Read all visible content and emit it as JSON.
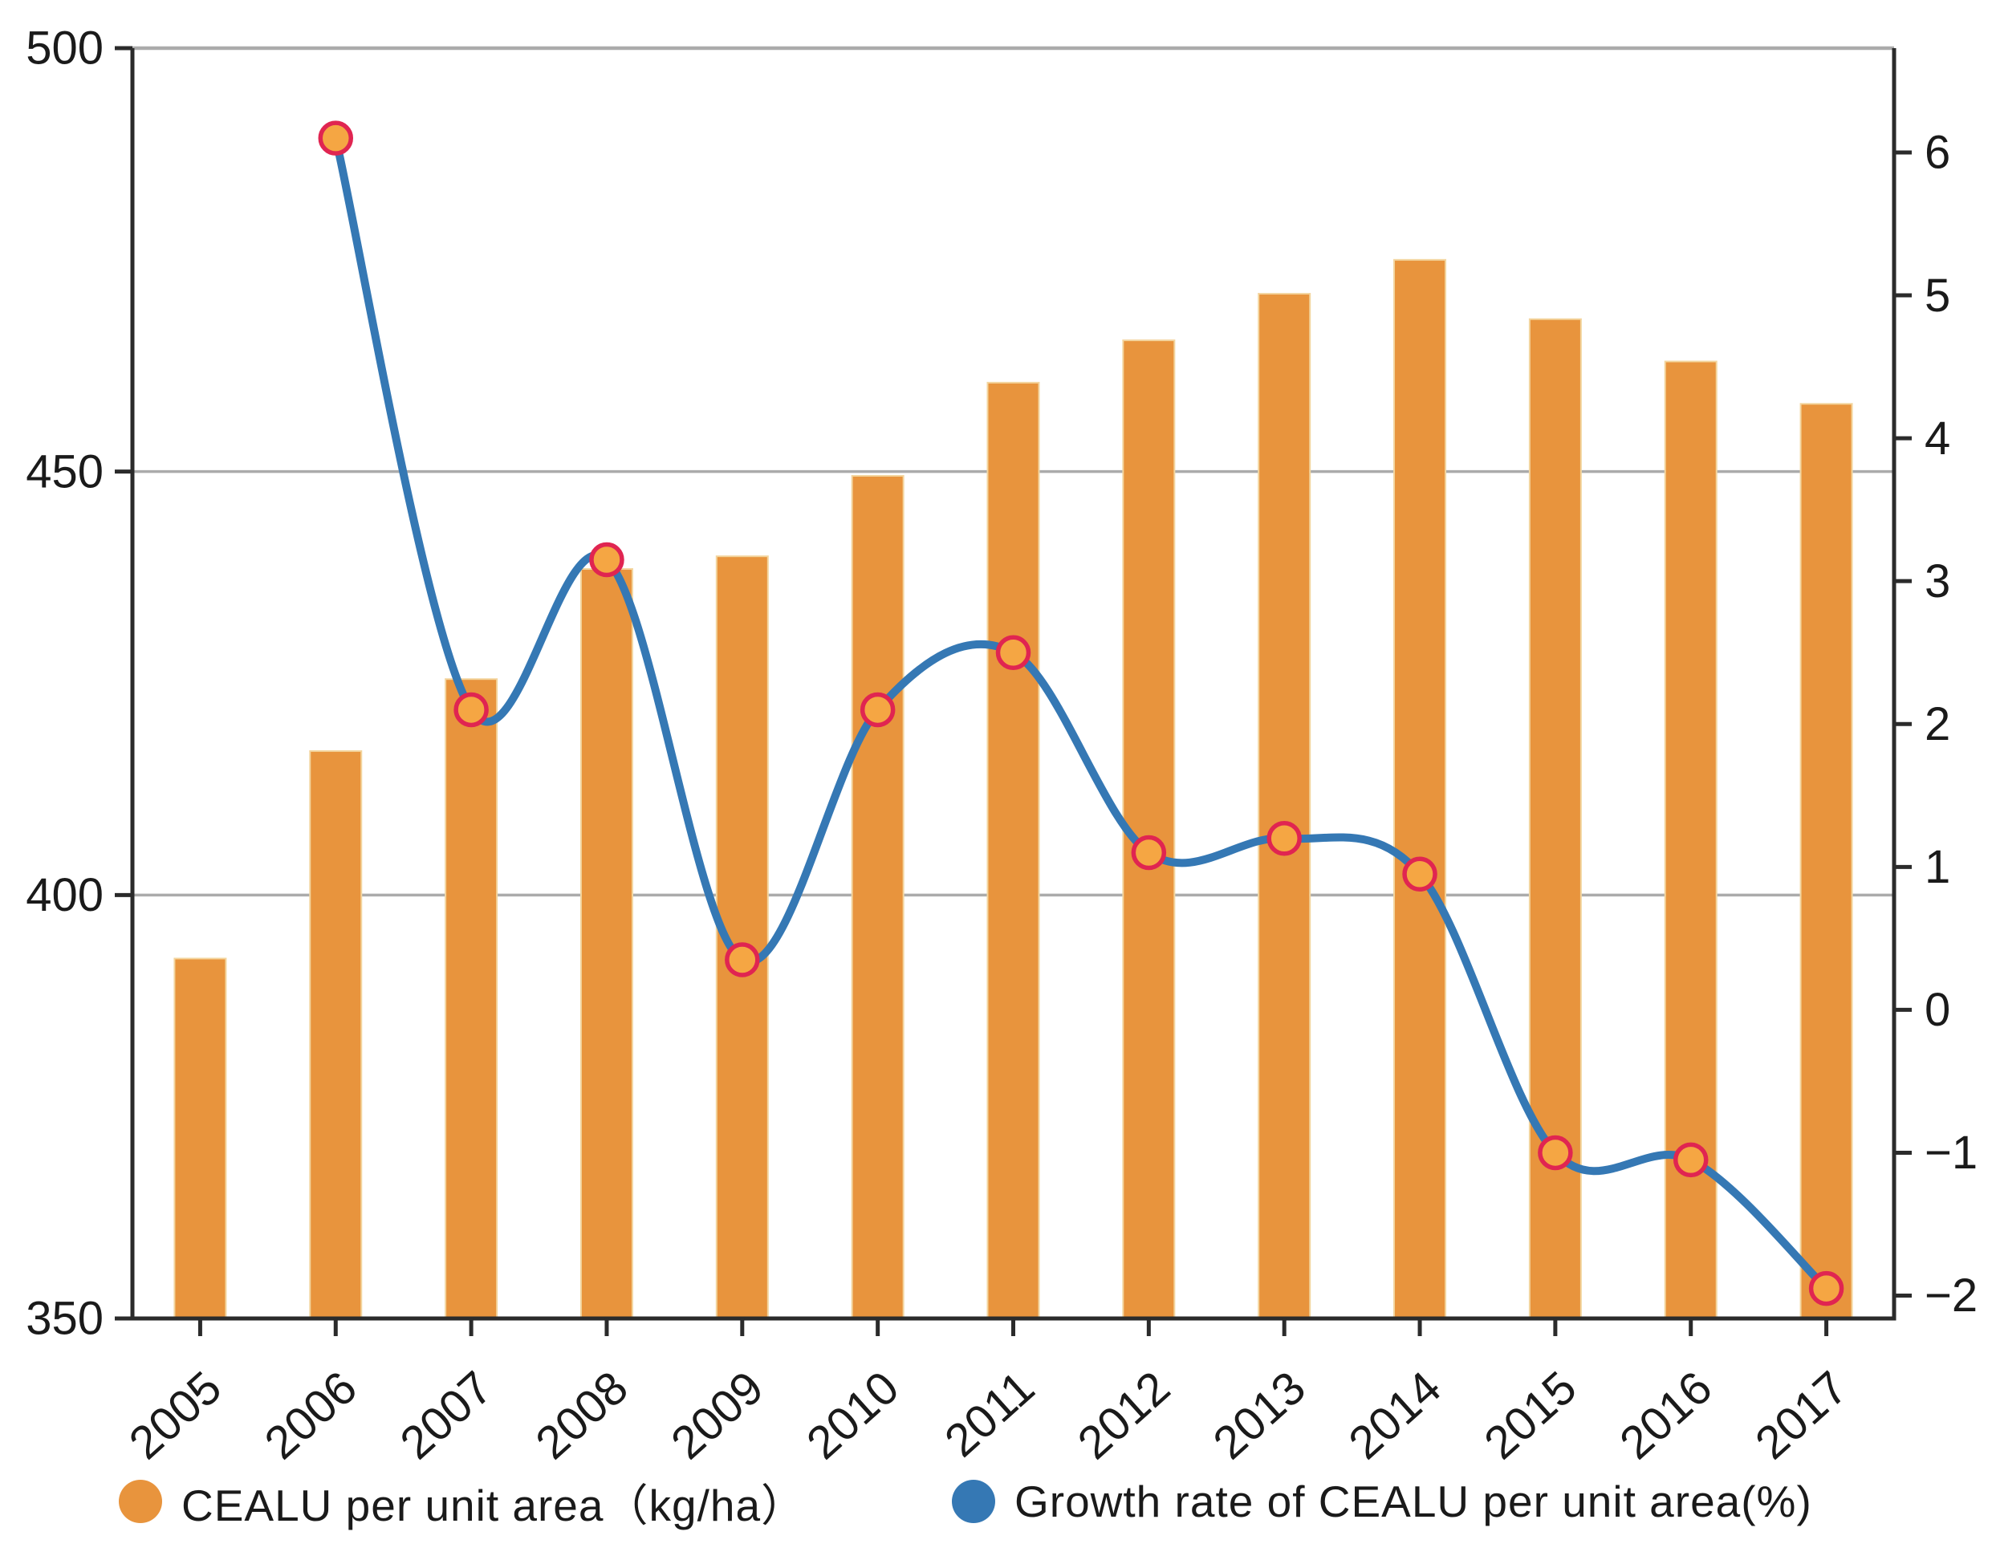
{
  "chart_data": {
    "type": "bar+line",
    "title": "",
    "xlabel": "",
    "ylabel_left": "",
    "ylabel_right": "",
    "categories": [
      "2005",
      "2006",
      "2007",
      "2008",
      "2009",
      "2010",
      "2011",
      "2012",
      "2013",
      "2014",
      "2015",
      "2016",
      "2017"
    ],
    "series": [
      {
        "name": "CEALU per unit area（kg/ha）",
        "type": "bar",
        "y_axis": "left",
        "color": "#E8943D",
        "edge_color": "#F3D59E",
        "values": [
          392.5,
          417,
          425.5,
          438.5,
          440,
          449.5,
          460.5,
          465.5,
          471,
          475,
          468,
          463,
          458
        ]
      },
      {
        "name": "Growth rate of CEALU per unit area(%)",
        "type": "line",
        "y_axis": "right",
        "color": "#3578B4",
        "marker_fill": "#F5A643",
        "marker_edge": "#E02551",
        "values": [
          null,
          6.1,
          2.1,
          3.15,
          0.35,
          2.1,
          2.5,
          1.1,
          1.2,
          0.95,
          -1.0,
          -1.05,
          -1.95
        ]
      }
    ],
    "left_axis": {
      "ticks": [
        500,
        450,
        400,
        350
      ],
      "range": [
        350,
        500
      ]
    },
    "right_axis": {
      "ticks": [
        6,
        5,
        4,
        3,
        2,
        1,
        0,
        -1,
        -2
      ],
      "range": [
        -2.16,
        6.73
      ]
    },
    "gridlines": {
      "left_values": [
        400,
        450,
        500
      ],
      "color": "#ABABAB"
    },
    "grid": "horizontal-only",
    "legend_position": "bottom",
    "x_tick_rotation_deg": 42
  },
  "legend": {
    "items": [
      {
        "label": "CEALU per unit area（kg/ha）",
        "swatch_color": "#E8943D"
      },
      {
        "label": "Growth rate of CEALU per unit area(%)",
        "swatch_color": "#3578B4"
      }
    ]
  },
  "colors": {
    "background": "#FFFFFF",
    "axis": "#2B2B2B",
    "tick_text": "#1A1A1A",
    "gridline": "#ABABAB"
  }
}
